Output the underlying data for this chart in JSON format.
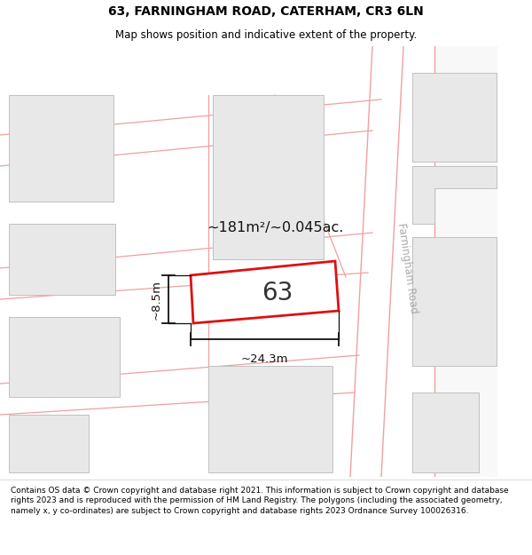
{
  "title_line1": "63, FARNINGHAM ROAD, CATERHAM, CR3 6LN",
  "title_line2": "Map shows position and indicative extent of the property.",
  "footer_text": "Contains OS data © Crown copyright and database right 2021. This information is subject to Crown copyright and database rights 2023 and is reproduced with the permission of HM Land Registry. The polygons (including the associated geometry, namely x, y co-ordinates) are subject to Crown copyright and database rights 2023 Ordnance Survey 100026316.",
  "map_bg": "#ffffff",
  "plot_fill": "#ffffff",
  "plot_outline": "#dd1111",
  "road_label": "Farningham Road",
  "road_label_color": "#aaaaaa",
  "area_text": "~181m²/~0.045ac.",
  "width_label": "~24.3m",
  "height_label": "~8.5m",
  "plot_number": "63",
  "building_fill": "#e8e8e8",
  "building_outline": "#c0c0c0",
  "road_line_color": "#f0a0a0",
  "road_band_color": "#ffffff",
  "dim_line_color": "#111111",
  "title_fontsize": 10,
  "subtitle_fontsize": 8.5,
  "footer_fontsize": 6.5
}
